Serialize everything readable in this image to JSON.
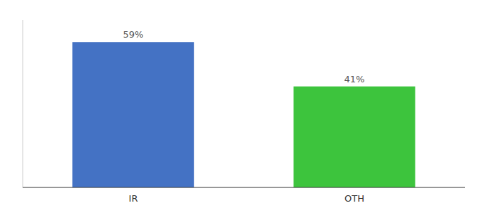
{
  "chart_data": {
    "type": "bar",
    "categories": [
      "IR",
      "OTH"
    ],
    "values": [
      59,
      41
    ],
    "value_labels": [
      "59%",
      "41%"
    ],
    "colors": [
      "#4472C4",
      "#3DC43D"
    ],
    "ylim": [
      0,
      68
    ],
    "data_labels": true,
    "tick_labels": "x"
  }
}
